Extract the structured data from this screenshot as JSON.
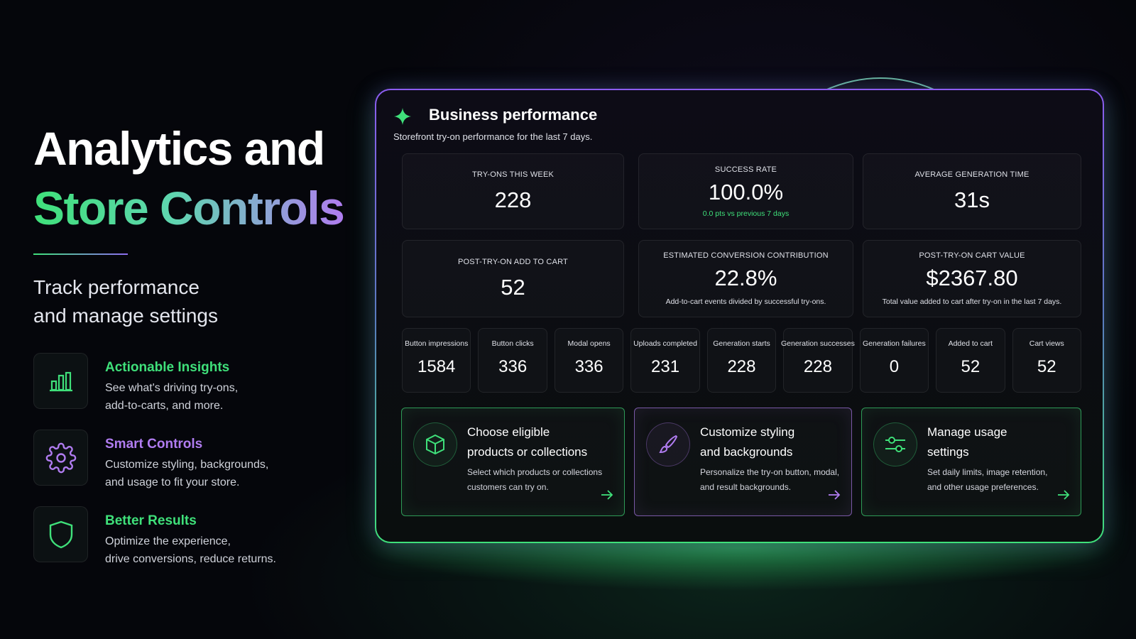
{
  "hero": {
    "title_line1": "Analytics and",
    "title_line2": "Store Controls",
    "subtitle_lines": [
      "Track performance",
      "and manage settings"
    ]
  },
  "features": [
    {
      "title": "Actionable Insights",
      "description_lines": [
        "See what's driving try-ons,",
        "add-to-carts, and more."
      ]
    },
    {
      "title": "Smart Controls",
      "description_lines": [
        "Customize styling, backgrounds,",
        "and usage to fit your store."
      ]
    },
    {
      "title": "Better Results",
      "description_lines": [
        "Optimize the experience,",
        "drive conversions, reduce returns."
      ]
    }
  ],
  "dashboard": {
    "title": "Business performance",
    "subtitle": "Storefront try-on performance for the last 7 days.",
    "kpis": [
      {
        "label": "TRY-ONS THIS WEEK",
        "value": "228"
      },
      {
        "label": "SUCCESS RATE",
        "value": "100.0%",
        "note": "0.0 pts vs previous 7 days"
      },
      {
        "label": "AVERAGE GENERATION TIME",
        "value": "31s"
      },
      {
        "label": "POST-TRY-ON ADD TO CART",
        "value": "52"
      },
      {
        "label": "ESTIMATED CONVERSION CONTRIBUTION",
        "value": "22.8%",
        "note": "Add-to-cart events divided by successful try-ons."
      },
      {
        "label": "POST-TRY-ON CART VALUE",
        "value": "$2367.80",
        "note": "Total value added to cart after try-on in the last 7 days."
      }
    ],
    "metrics": [
      {
        "label": "Button impressions",
        "value": "1584"
      },
      {
        "label": "Button clicks",
        "value": "336"
      },
      {
        "label": "Modal opens",
        "value": "336"
      },
      {
        "label": "Uploads completed",
        "value": "231"
      },
      {
        "label": "Generation starts",
        "value": "228"
      },
      {
        "label": "Generation successes",
        "value": "228"
      },
      {
        "label": "Generation failures",
        "value": "0"
      },
      {
        "label": "Added to cart",
        "value": "52"
      },
      {
        "label": "Cart views",
        "value": "52"
      }
    ],
    "actions": [
      {
        "title_lines": [
          "Choose eligible",
          "products or collections"
        ],
        "description_lines": [
          "Select which products or collections",
          "customers can try on."
        ]
      },
      {
        "title_lines": [
          "Customize styling",
          "and backgrounds"
        ],
        "description_lines": [
          "Personalize the try-on button, modal,",
          "and result backgrounds."
        ]
      },
      {
        "title_lines": [
          "Manage usage",
          "settings"
        ],
        "description_lines": [
          "Set daily limits, image retention,",
          "and other usage preferences."
        ]
      }
    ]
  }
}
